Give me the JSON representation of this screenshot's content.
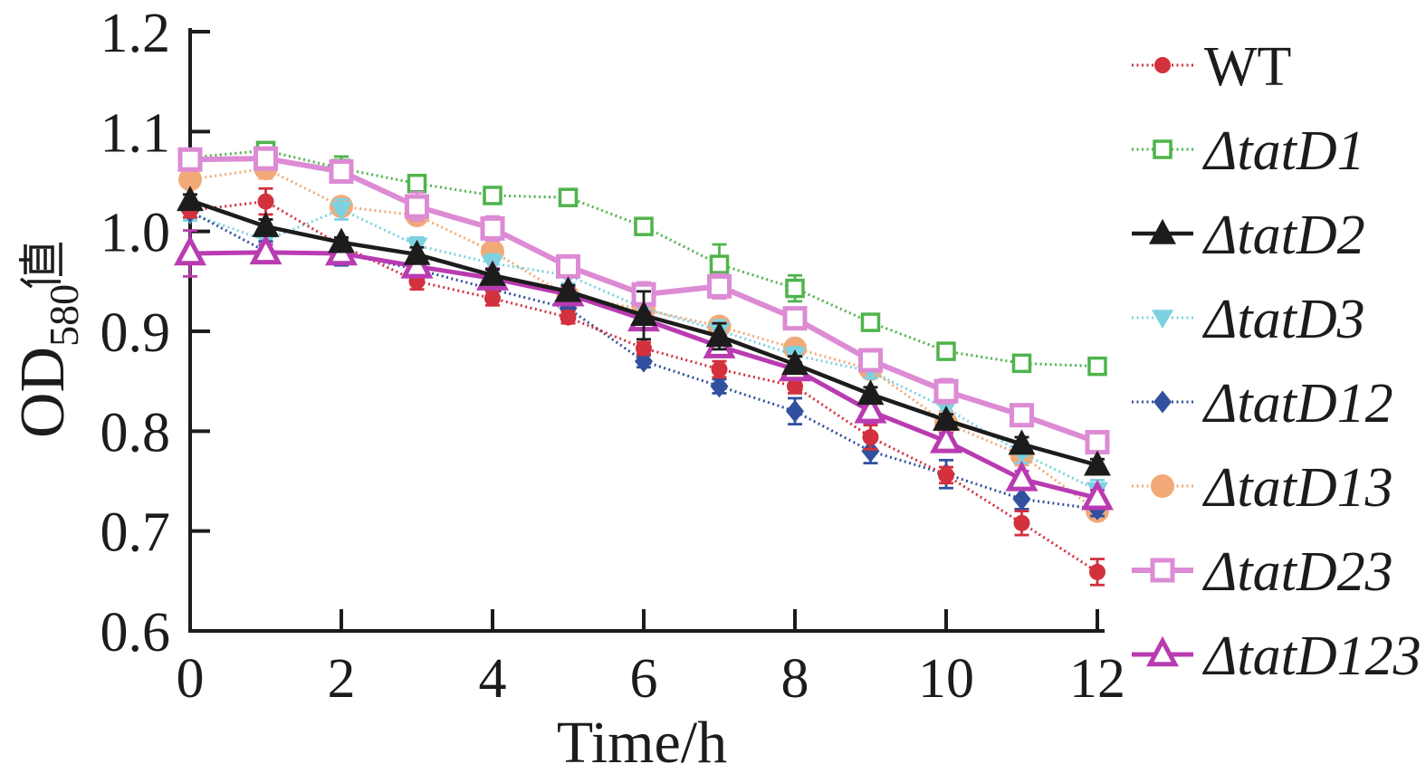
{
  "figure": {
    "background": "#ffffff",
    "text_color": "#1c1c1c"
  },
  "chart_data": {
    "type": "line",
    "title": "",
    "xlabel": "Time/h",
    "ylabel": {
      "main": "OD",
      "sub": "580",
      "cjk": "值"
    },
    "xlim": [
      0,
      12
    ],
    "ylim": [
      0.6,
      1.2
    ],
    "grid": false,
    "legend_position": "right",
    "x": [
      0,
      1,
      2,
      3,
      4,
      5,
      6,
      7,
      8,
      9,
      10,
      11,
      12
    ],
    "x_tick_labels": [
      "0",
      "2",
      "4",
      "6",
      "8",
      "10",
      "12"
    ],
    "x_ticks": [
      0,
      2,
      4,
      6,
      8,
      10,
      12
    ],
    "y_ticks": [
      0.6,
      0.7,
      0.8,
      0.9,
      1.0,
      1.1,
      1.2
    ],
    "y_tick_labels": [
      "0.6",
      "0.7",
      "0.8",
      "0.9",
      "1.0",
      "1.1",
      "1.2"
    ],
    "series": [
      {
        "name": "wt",
        "label": "WT",
        "italic": false,
        "color": "#d2313d",
        "marker": "circle",
        "marker_size": 9,
        "line": "dotted",
        "line_width": 3,
        "values": [
          1.021,
          1.03,
          0.986,
          0.95,
          0.933,
          0.914,
          0.883,
          0.862,
          0.845,
          0.794,
          0.756,
          0.708,
          0.659
        ],
        "errors": [
          0.007,
          0.013,
          0.006,
          0.008,
          0.007,
          0.006,
          0.006,
          0.008,
          0.007,
          0.012,
          0.008,
          0.012,
          0.013
        ]
      },
      {
        "name": "tatd1",
        "label": "ΔtatD1",
        "italic": true,
        "color": "#4eb44a",
        "marker": "square-open",
        "marker_size": 9,
        "line": "dotted",
        "line_width": 3,
        "values": [
          1.074,
          1.081,
          1.063,
          1.048,
          1.036,
          1.034,
          1.005,
          0.967,
          0.943,
          0.909,
          0.88,
          0.868,
          0.865
        ],
        "errors": [
          0.008,
          0.006,
          0.012,
          0.008,
          0.006,
          0.005,
          0.007,
          0.02,
          0.013,
          0.008,
          0.008,
          0.008,
          0.006
        ]
      },
      {
        "name": "tatd2",
        "label": "ΔtatD2",
        "italic": true,
        "color": "#1c1c1c",
        "marker": "triangle-up",
        "marker_size": 13,
        "line": "solid",
        "line_width": 4.5,
        "values": [
          1.031,
          1.005,
          0.989,
          0.977,
          0.956,
          0.94,
          0.916,
          0.895,
          0.867,
          0.837,
          0.811,
          0.787,
          0.766
        ],
        "errors": [
          0.006,
          0.007,
          0.005,
          0.007,
          0.006,
          0.006,
          0.024,
          0.013,
          0.008,
          0.007,
          0.006,
          0.007,
          0.006
        ]
      },
      {
        "name": "tatd3",
        "label": "ΔtatD3",
        "italic": true,
        "color": "#7dd2e1",
        "marker": "triangle-down",
        "marker_size": 11,
        "line": "dotted",
        "line_width": 3,
        "values": [
          1.018,
          0.991,
          1.022,
          0.986,
          0.968,
          0.956,
          0.923,
          0.901,
          0.876,
          0.86,
          0.823,
          0.778,
          0.741
        ],
        "errors": [
          0.007,
          0.008,
          0.01,
          0.008,
          0.009,
          0.008,
          0.008,
          0.01,
          0.008,
          0.007,
          0.014,
          0.01,
          0.01
        ]
      },
      {
        "name": "tatd12",
        "label": "ΔtatD12",
        "italic": true,
        "color": "#31519e",
        "marker": "diamond",
        "marker_size": 10,
        "line": "dotted",
        "line_width": 3,
        "values": [
          1.02,
          0.98,
          0.978,
          0.962,
          0.942,
          0.923,
          0.87,
          0.845,
          0.82,
          0.78,
          0.757,
          0.732,
          0.722
        ],
        "errors": [
          0.006,
          0.01,
          0.012,
          0.007,
          0.006,
          0.007,
          0.006,
          0.007,
          0.013,
          0.012,
          0.014,
          0.01,
          0.007
        ]
      },
      {
        "name": "tatd13",
        "label": "ΔtatD13",
        "italic": true,
        "color": "#f1aa77",
        "marker": "circle",
        "marker_size": 13,
        "line": "dotted",
        "line_width": 3,
        "values": [
          1.052,
          1.063,
          1.025,
          1.016,
          0.98,
          0.935,
          0.922,
          0.905,
          0.883,
          0.862,
          0.808,
          0.776,
          0.72
        ],
        "errors": [
          0.008,
          0.01,
          0.008,
          0.007,
          0.008,
          0.012,
          0.007,
          0.008,
          0.008,
          0.007,
          0.012,
          0.01,
          0.008
        ]
      },
      {
        "name": "tatd23",
        "label": "ΔtatD23",
        "italic": true,
        "color": "#dc8bd4",
        "marker": "square-open",
        "marker_size": 11,
        "line": "solid",
        "line_width": 6,
        "values": [
          1.072,
          1.073,
          1.06,
          1.025,
          1.003,
          0.965,
          0.937,
          0.945,
          0.913,
          0.871,
          0.84,
          0.816,
          0.789
        ],
        "errors": [
          0.01,
          0.008,
          0.008,
          0.014,
          0.012,
          0.008,
          0.012,
          0.012,
          0.008,
          0.008,
          0.012,
          0.008,
          0.007
        ]
      },
      {
        "name": "tatd123",
        "label": "ΔtatD123",
        "italic": true,
        "color": "#b93bb1",
        "marker": "triangle-up-open",
        "marker_size": 12,
        "line": "solid",
        "line_width": 5,
        "values": [
          0.978,
          0.979,
          0.978,
          0.965,
          0.953,
          0.937,
          0.912,
          0.885,
          0.862,
          0.82,
          0.79,
          0.752,
          0.733
        ],
        "errors": [
          0.023,
          0.008,
          0.006,
          0.008,
          0.01,
          0.007,
          0.007,
          0.008,
          0.007,
          0.012,
          0.008,
          0.008,
          0.008
        ]
      }
    ],
    "draw_order": [
      1,
      5,
      3,
      4,
      0,
      6,
      7,
      2
    ]
  }
}
